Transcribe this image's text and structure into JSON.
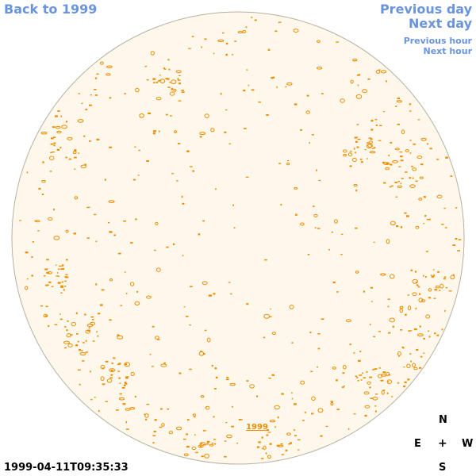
{
  "nav": {
    "back_label": "Back to 1999",
    "prev_day_label": "Previous day",
    "next_day_label": "Next day",
    "prev_hour_label": "Previous hour",
    "next_hour_label": "Next hour"
  },
  "disk": {
    "year_label": "1999",
    "fill_color": "#fdf8eb",
    "edge_color": "#b8b0a0",
    "contour_color": "#f08c00"
  },
  "timestamp": "1999-04-11T09:35:33",
  "compass": {
    "north": "N",
    "east": "E",
    "west": "W",
    "south": "S",
    "center": "+"
  },
  "colors": {
    "link": "#6a94db",
    "text": "#000000"
  }
}
